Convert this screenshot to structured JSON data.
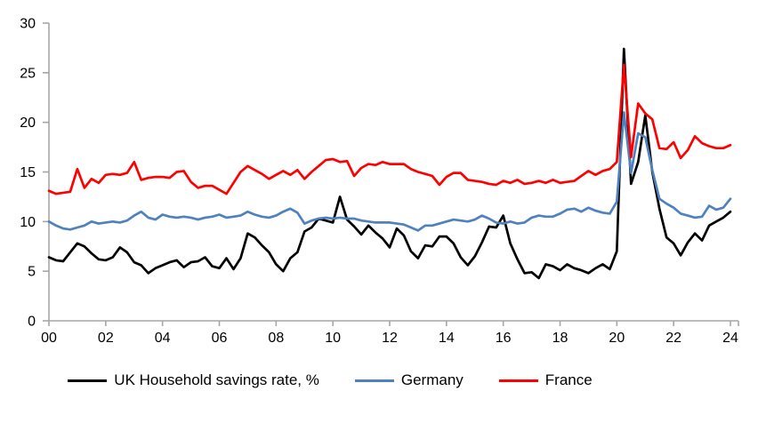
{
  "chart_data": {
    "type": "line",
    "title": "",
    "frequency": "quarterly",
    "x_start_year": 2000,
    "x_end_year": 2024,
    "x_tick_labels": [
      "00",
      "02",
      "04",
      "06",
      "08",
      "10",
      "12",
      "14",
      "16",
      "18",
      "20",
      "22",
      "24"
    ],
    "y_ticks": [
      0,
      5,
      10,
      15,
      20,
      25,
      30
    ],
    "ylim": [
      0,
      30
    ],
    "grid": false,
    "legend_position": "bottom",
    "axis_color": "#a6a6a6",
    "background_color": "#ffffff",
    "series": [
      {
        "name": "UK Household savings rate, %",
        "color": "#000000",
        "values": [
          6.4,
          6.1,
          6.0,
          6.9,
          7.8,
          7.5,
          6.8,
          6.2,
          6.1,
          6.4,
          7.4,
          6.9,
          5.9,
          5.6,
          4.8,
          5.3,
          5.6,
          5.9,
          6.1,
          5.4,
          5.9,
          6.0,
          6.4,
          5.5,
          5.3,
          6.3,
          5.2,
          6.3,
          8.8,
          8.4,
          7.6,
          6.9,
          5.7,
          5.0,
          6.3,
          6.9,
          9.0,
          9.4,
          10.3,
          10.1,
          9.9,
          12.5,
          10.2,
          9.5,
          8.7,
          9.6,
          8.9,
          8.3,
          7.4,
          9.3,
          8.6,
          7.0,
          6.3,
          7.6,
          7.5,
          8.5,
          8.5,
          7.8,
          6.4,
          5.6,
          6.5,
          7.9,
          9.5,
          9.4,
          10.6,
          7.8,
          6.2,
          4.8,
          4.9,
          4.3,
          5.7,
          5.5,
          5.1,
          5.7,
          5.3,
          5.1,
          4.8,
          5.3,
          5.7,
          5.2,
          7.0,
          27.4,
          13.8,
          16.0,
          20.7,
          15.0,
          11.3,
          8.4,
          7.8,
          6.6,
          7.9,
          8.8,
          8.1,
          9.6,
          10.0,
          10.4,
          11.0
        ]
      },
      {
        "name": "Germany",
        "color": "#4e81bd",
        "values": [
          10.0,
          9.6,
          9.3,
          9.2,
          9.4,
          9.6,
          10.0,
          9.8,
          9.9,
          10.0,
          9.9,
          10.1,
          10.6,
          11.0,
          10.4,
          10.2,
          10.7,
          10.5,
          10.4,
          10.5,
          10.4,
          10.2,
          10.4,
          10.5,
          10.7,
          10.4,
          10.5,
          10.6,
          11.0,
          10.7,
          10.5,
          10.4,
          10.6,
          11.0,
          11.3,
          10.9,
          9.8,
          10.1,
          10.3,
          10.4,
          10.3,
          10.4,
          10.3,
          10.3,
          10.1,
          10.0,
          9.9,
          9.9,
          9.9,
          9.8,
          9.7,
          9.4,
          9.1,
          9.6,
          9.6,
          9.8,
          10.0,
          10.2,
          10.1,
          10.0,
          10.2,
          10.6,
          10.3,
          9.9,
          9.8,
          10.0,
          9.8,
          9.9,
          10.4,
          10.6,
          10.5,
          10.5,
          10.8,
          11.2,
          11.3,
          11.0,
          11.4,
          11.1,
          10.9,
          10.8,
          12.0,
          21.0,
          14.9,
          18.9,
          18.5,
          15.2,
          12.3,
          11.8,
          11.4,
          10.8,
          10.6,
          10.4,
          10.5,
          11.6,
          11.2,
          11.4,
          12.3
        ]
      },
      {
        "name": "France",
        "color": "#ff0000",
        "values": [
          13.1,
          12.8,
          12.9,
          13.0,
          15.3,
          13.4,
          14.3,
          13.9,
          14.7,
          14.8,
          14.7,
          14.9,
          16.0,
          14.2,
          14.4,
          14.5,
          14.5,
          14.4,
          15.0,
          15.1,
          14.0,
          13.4,
          13.6,
          13.6,
          13.2,
          12.8,
          13.9,
          15.0,
          15.6,
          15.2,
          14.8,
          14.3,
          14.7,
          15.1,
          14.7,
          15.2,
          14.3,
          15.0,
          15.6,
          16.2,
          16.3,
          16.0,
          16.1,
          14.6,
          15.4,
          15.8,
          15.7,
          16.0,
          15.8,
          15.8,
          15.8,
          15.3,
          15.0,
          14.8,
          14.6,
          13.7,
          14.5,
          14.9,
          14.9,
          14.2,
          14.1,
          14.0,
          13.8,
          13.7,
          14.1,
          13.9,
          14.2,
          13.8,
          13.9,
          14.1,
          13.9,
          14.2,
          13.9,
          14.0,
          14.1,
          14.6,
          15.1,
          14.7,
          15.1,
          15.3,
          16.0,
          25.8,
          16.5,
          21.9,
          20.9,
          20.3,
          17.4,
          17.3,
          18.0,
          16.4,
          17.2,
          18.6,
          17.9,
          17.6,
          17.4,
          17.4,
          17.7
        ]
      }
    ]
  }
}
